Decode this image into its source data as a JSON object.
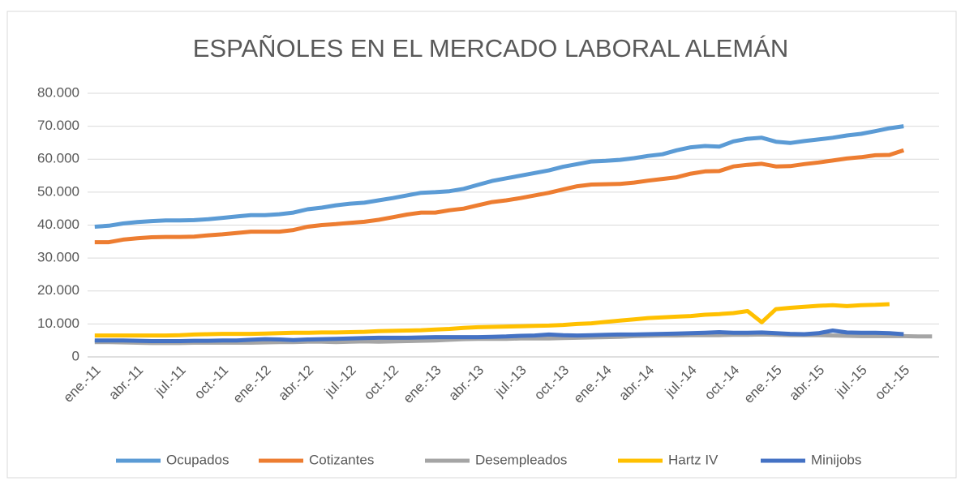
{
  "chart_data": {
    "type": "line",
    "title": "ESPAÑOLES EN EL MERCADO LABORAL ALEMÁN",
    "categories": [
      "ene.-11",
      null,
      null,
      "abr.-11",
      null,
      null,
      "jul.-11",
      null,
      null,
      "oct.-11",
      null,
      null,
      "ene.-12",
      null,
      null,
      "abr.-12",
      null,
      null,
      "jul.-12",
      null,
      null,
      "oct.-12",
      null,
      null,
      "ene.-13",
      null,
      null,
      "abr.-13",
      null,
      null,
      "jul.-13",
      null,
      null,
      "oct.-13",
      null,
      null,
      "ene.-14",
      null,
      null,
      "abr.-14",
      null,
      null,
      "jul.-14",
      null,
      null,
      "oct.-14",
      null,
      null,
      "ene.-15",
      null,
      null,
      "abr.-15",
      null,
      null,
      "jul.-15",
      null,
      null,
      "oct.-15",
      null,
      null
    ],
    "series": [
      {
        "name": "Ocupados",
        "color": "#5b9bd5",
        "values": [
          39500,
          39800,
          40500,
          40900,
          41200,
          41400,
          41400,
          41500,
          41800,
          42200,
          42600,
          43000,
          43000,
          43300,
          43800,
          44800,
          45300,
          46000,
          46500,
          46800,
          47500,
          48200,
          49000,
          49800,
          50000,
          50300,
          51000,
          52200,
          53400,
          54200,
          55000,
          55800,
          56600,
          57700,
          58500,
          59300,
          59500,
          59800,
          60300,
          61000,
          61500,
          62700,
          63600,
          64000,
          63800,
          65400,
          66200,
          66500,
          65300,
          64900,
          65500,
          66000,
          66500,
          67200,
          67700,
          68500,
          69400,
          70000,
          null,
          null
        ]
      },
      {
        "name": "Cotizantes",
        "color": "#ed7d31",
        "values": [
          34800,
          34800,
          35600,
          36000,
          36300,
          36400,
          36400,
          36500,
          36900,
          37200,
          37600,
          38000,
          38000,
          38000,
          38500,
          39500,
          40000,
          40300,
          40700,
          41000,
          41600,
          42400,
          43200,
          43800,
          43800,
          44500,
          45000,
          46000,
          47000,
          47500,
          48200,
          49000,
          49800,
          50800,
          51800,
          52300,
          52400,
          52500,
          52900,
          53500,
          54000,
          54500,
          55600,
          56300,
          56400,
          57800,
          58300,
          58600,
          57800,
          57900,
          58500,
          59000,
          59600,
          60200,
          60600,
          61200,
          61300,
          62700,
          null,
          null
        ]
      },
      {
        "name": "Desempleados",
        "color": "#a5a5a5",
        "values": [
          4500,
          4500,
          4400,
          4300,
          4200,
          4200,
          4200,
          4300,
          4300,
          4300,
          4300,
          4300,
          4400,
          4500,
          4500,
          4600,
          4600,
          4500,
          4600,
          4700,
          4600,
          4700,
          4800,
          4900,
          5000,
          5200,
          5400,
          5500,
          5500,
          5500,
          5600,
          5600,
          5600,
          5700,
          5800,
          5900,
          6000,
          6100,
          6300,
          6400,
          6500,
          6500,
          6600,
          6600,
          6600,
          6700,
          6700,
          6800,
          6700,
          6600,
          6600,
          6600,
          6500,
          6400,
          6300,
          6300,
          6300,
          6300,
          6200,
          6200
        ]
      },
      {
        "name": "Hartz IV",
        "color": "#ffc000",
        "values": [
          6500,
          6500,
          6500,
          6500,
          6500,
          6500,
          6600,
          6800,
          6900,
          7000,
          7000,
          7000,
          7100,
          7200,
          7300,
          7300,
          7400,
          7400,
          7500,
          7600,
          7800,
          7900,
          8000,
          8100,
          8300,
          8500,
          8800,
          9000,
          9100,
          9200,
          9300,
          9400,
          9500,
          9700,
          10000,
          10200,
          10600,
          11000,
          11400,
          11800,
          12000,
          12200,
          12400,
          12800,
          13000,
          13300,
          13900,
          10500,
          14500,
          14900,
          15200,
          15500,
          15700,
          15400,
          15700,
          15800,
          16000,
          null,
          null,
          null
        ]
      },
      {
        "name": "Minijobs",
        "color": "#4472c4",
        "values": [
          5000,
          5000,
          5000,
          4900,
          4800,
          4800,
          4800,
          4900,
          4900,
          5000,
          5000,
          5200,
          5400,
          5300,
          5100,
          5300,
          5400,
          5500,
          5600,
          5700,
          5800,
          5800,
          5800,
          5900,
          6000,
          6000,
          6000,
          6000,
          6100,
          6200,
          6400,
          6500,
          6800,
          6600,
          6500,
          6600,
          6700,
          6800,
          6800,
          6900,
          7000,
          7100,
          7200,
          7300,
          7500,
          7300,
          7300,
          7400,
          7200,
          7000,
          6900,
          7200,
          8000,
          7400,
          7300,
          7300,
          7200,
          6900,
          null,
          null
        ]
      }
    ],
    "ylim": [
      0,
      80000
    ],
    "yticks": [
      0,
      {
        "value": 10000,
        "label": "10.000"
      },
      {
        "value": 20000,
        "label": "20.000"
      },
      {
        "value": 30000,
        "label": "30.000"
      },
      {
        "value": 40000,
        "label": "40.000"
      },
      {
        "value": 50000,
        "label": "50.000"
      },
      {
        "value": 60000,
        "label": "60.000"
      },
      {
        "value": 70000,
        "label": "70.000"
      },
      {
        "value": 80000,
        "label": "80.000"
      }
    ],
    "grid": true,
    "legend": "bottom"
  }
}
